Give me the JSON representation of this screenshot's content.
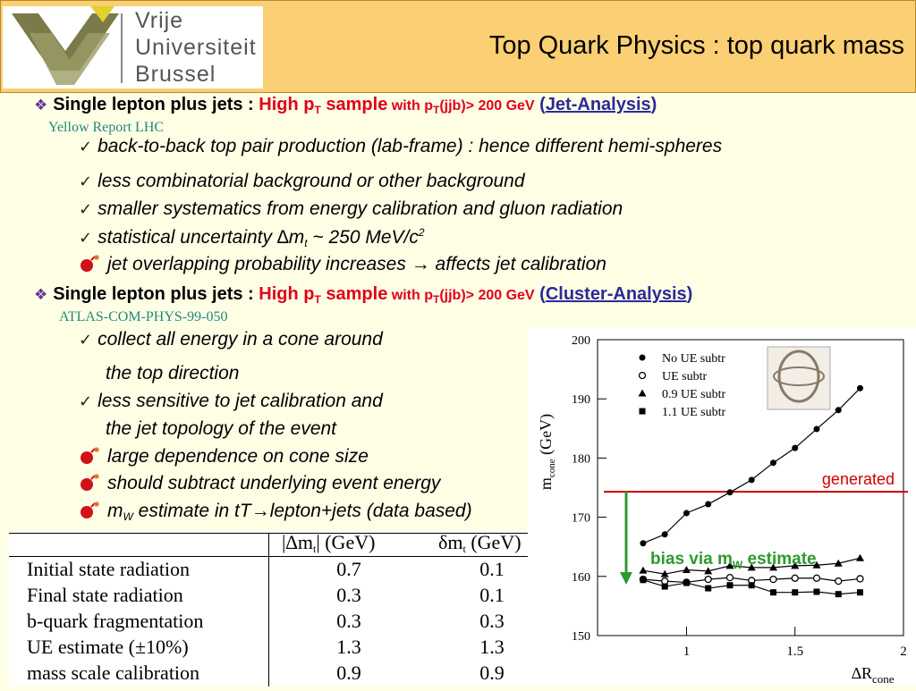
{
  "header": {
    "title": "Top Quark Physics : top quark mass",
    "logo": [
      "Vrije",
      "Universiteit",
      "Brussel"
    ]
  },
  "sections": [
    {
      "heading": [
        "Single lepton plus jets : ",
        "High p",
        "T",
        " sample",
        " with p",
        "T",
        "(jjb)> 200 GeV",
        " (",
        "Jet-Analysis",
        ")"
      ],
      "source": "Yellow Report LHC",
      "items": [
        [
          "back-to-back top pair production (lab-frame) : hence different hemi-spheres"
        ],
        [
          "less combinatorial background or other background"
        ],
        [
          "smaller systematics from energy calibration and gluon radiation"
        ],
        [
          "statistical uncertainty ∆m",
          "t",
          " ~ 250 MeV/c",
          "2"
        ],
        [
          "jet overlapping probability increases → affects jet calibration"
        ]
      ]
    },
    {
      "heading": [
        "Single lepton plus jets : ",
        "High p",
        "T",
        " sample",
        " with p",
        "T",
        "(jjb)> 200 GeV",
        " (",
        "Cluster-Analysis",
        ")"
      ],
      "source": "ATLAS-COM-PHYS-99-050",
      "items": [
        [
          "collect all energy in a cone around",
          "the top direction"
        ],
        [
          "less sensitive to jet calibration and",
          "the jet topology of the event"
        ],
        [
          "large dependence on cone size"
        ],
        [
          "should subtract underlying event energy"
        ],
        [
          "m",
          "W",
          " estimate in tT→lepton+jets (data based)"
        ]
      ]
    }
  ],
  "table": {
    "columns": [
      [
        "|∆m",
        "t",
        "| (GeV)"
      ],
      [
        "δm",
        "t",
        " (GeV)"
      ]
    ],
    "rows": [
      [
        "Initial state radiation",
        0.7,
        0.1
      ],
      [
        "Final state radiation",
        0.3,
        0.1
      ],
      [
        "b-quark fragmentation",
        0.3,
        0.3
      ],
      [
        "UE estimate (±10%)",
        1.3,
        1.3
      ],
      [
        "mass scale calibration",
        0.9,
        0.9
      ]
    ]
  },
  "chart_data": {
    "type": "line",
    "ylabel": [
      "m",
      "cone",
      " (GeV)"
    ],
    "xlabel": [
      "∆R",
      "cone"
    ],
    "x": [
      0.8,
      0.9,
      1.0,
      1.1,
      1.2,
      1.3,
      1.4,
      1.5,
      1.6,
      1.7,
      1.8
    ],
    "series": [
      {
        "name": "No UE subtr",
        "marker": "filled-circle",
        "color": "#000000",
        "values": [
          165.6,
          167.1,
          170.7,
          172.2,
          174.2,
          176.3,
          179.2,
          181.7,
          184.9,
          188.1,
          191.8
        ]
      },
      {
        "name": "UE subtr",
        "marker": "open-circle",
        "color": "#000000",
        "values": [
          159.5,
          159.2,
          159.0,
          159.5,
          159.8,
          159.3,
          159.5,
          159.7,
          159.7,
          159.2,
          159.6
        ]
      },
      {
        "name": "0.9 UE subtr",
        "marker": "triangle",
        "color": "#000000",
        "values": [
          161.0,
          160.4,
          161.1,
          160.9,
          161.8,
          161.5,
          161.5,
          161.8,
          161.9,
          162.2,
          163.1
        ]
      },
      {
        "name": "1.1 UE subtr",
        "marker": "square",
        "color": "#000000",
        "values": [
          159.4,
          158.3,
          158.9,
          158.0,
          158.5,
          158.5,
          157.3,
          157.3,
          157.4,
          157.0,
          157.3
        ]
      }
    ],
    "xlim": [
      0.59,
      2
    ],
    "ylim": [
      150,
      200
    ],
    "xticks": [
      1,
      1.5,
      2
    ],
    "yticks": [
      150,
      160,
      170,
      180,
      190,
      200
    ],
    "reference": {
      "value": 174.3,
      "label": "generated",
      "color": "#d00000"
    },
    "annotation": {
      "parts": [
        "bias via m",
        "W",
        " estimate"
      ],
      "color": "#2e9a2e"
    }
  }
}
